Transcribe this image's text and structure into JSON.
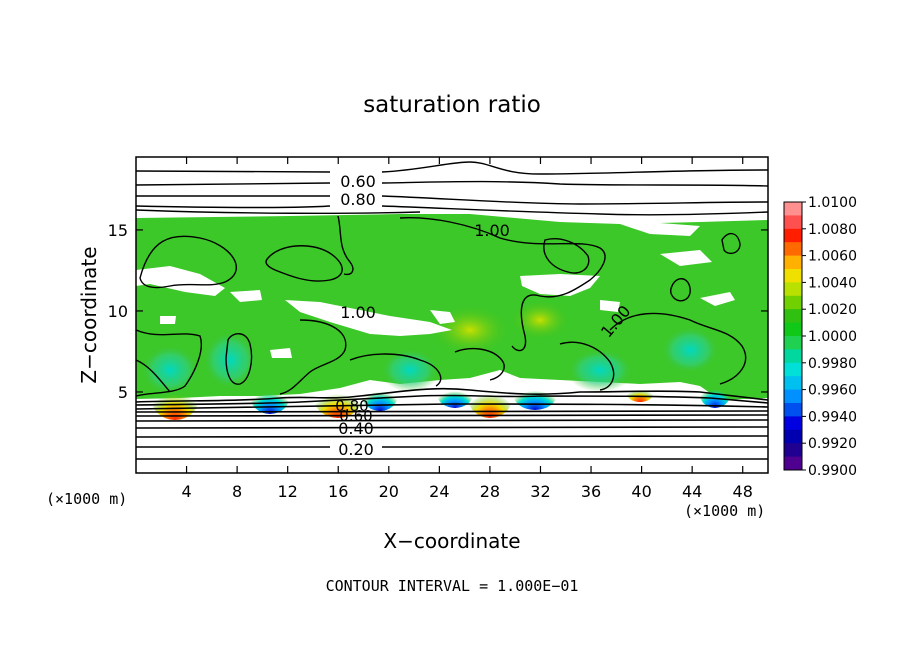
{
  "chart_data": {
    "type": "heatmap",
    "title": "saturation ratio",
    "xlabel": "X−coordinate",
    "ylabel": "Z−coordinate",
    "x_unit_label": "(×1000 m)",
    "y_unit_label": "(×1000 m)",
    "xlim": [
      0,
      50
    ],
    "ylim": [
      0,
      19.5
    ],
    "x_ticks": [
      4,
      8,
      12,
      16,
      20,
      24,
      28,
      32,
      36,
      40,
      44,
      48
    ],
    "y_ticks": [
      5,
      10,
      15
    ],
    "footer": "CONTOUR INTERVAL = 1.000E−01",
    "colorbar": {
      "ticks": [
        "1.0100",
        "1.0080",
        "1.0060",
        "1.0040",
        "1.0020",
        "1.0000",
        "0.9980",
        "0.9960",
        "0.9940",
        "0.9920",
        "0.9900"
      ],
      "colors": [
        "#ff9090",
        "#ff5050",
        "#ff1e00",
        "#ff6a00",
        "#ffb000",
        "#f0e000",
        "#b8e000",
        "#70d000",
        "#30c010",
        "#10c818",
        "#20d050",
        "#00d8a0",
        "#00e0d8",
        "#00c0f0",
        "#0090ff",
        "#0050f0",
        "#0000e0",
        "#0000b0",
        "#200090",
        "#500090"
      ]
    },
    "contour_labels": [
      {
        "text": "0.60",
        "x": 17.6,
        "z": 18.2
      },
      {
        "text": "0.80",
        "x": 17.6,
        "z": 17.2
      },
      {
        "text": "1.00",
        "x": 28.0,
        "z": 15.3
      },
      {
        "text": "1.00",
        "x": 17.6,
        "z": 10.0
      },
      {
        "text": "1.00",
        "x": 38.4,
        "z": 9.7
      },
      {
        "text": "0.80",
        "x": 17.2,
        "z": 4.2
      },
      {
        "text": "0.60",
        "x": 17.2,
        "z": 3.6
      },
      {
        "text": "0.40",
        "x": 17.2,
        "z": 2.7
      },
      {
        "text": "0.20",
        "x": 17.2,
        "z": 1.4
      }
    ],
    "domains": [
      {
        "z_range": [
          4.8,
          16.2
        ],
        "saturation_ratio": "~1.000 (supersaturated, green field)"
      },
      {
        "z_range": [
          0,
          4.8
        ],
        "saturation_ratio": "0.0–0.9 (contoured)"
      },
      {
        "z_range": [
          16.2,
          19.5
        ],
        "saturation_ratio": "0.6–0.9 (contoured)"
      }
    ]
  }
}
